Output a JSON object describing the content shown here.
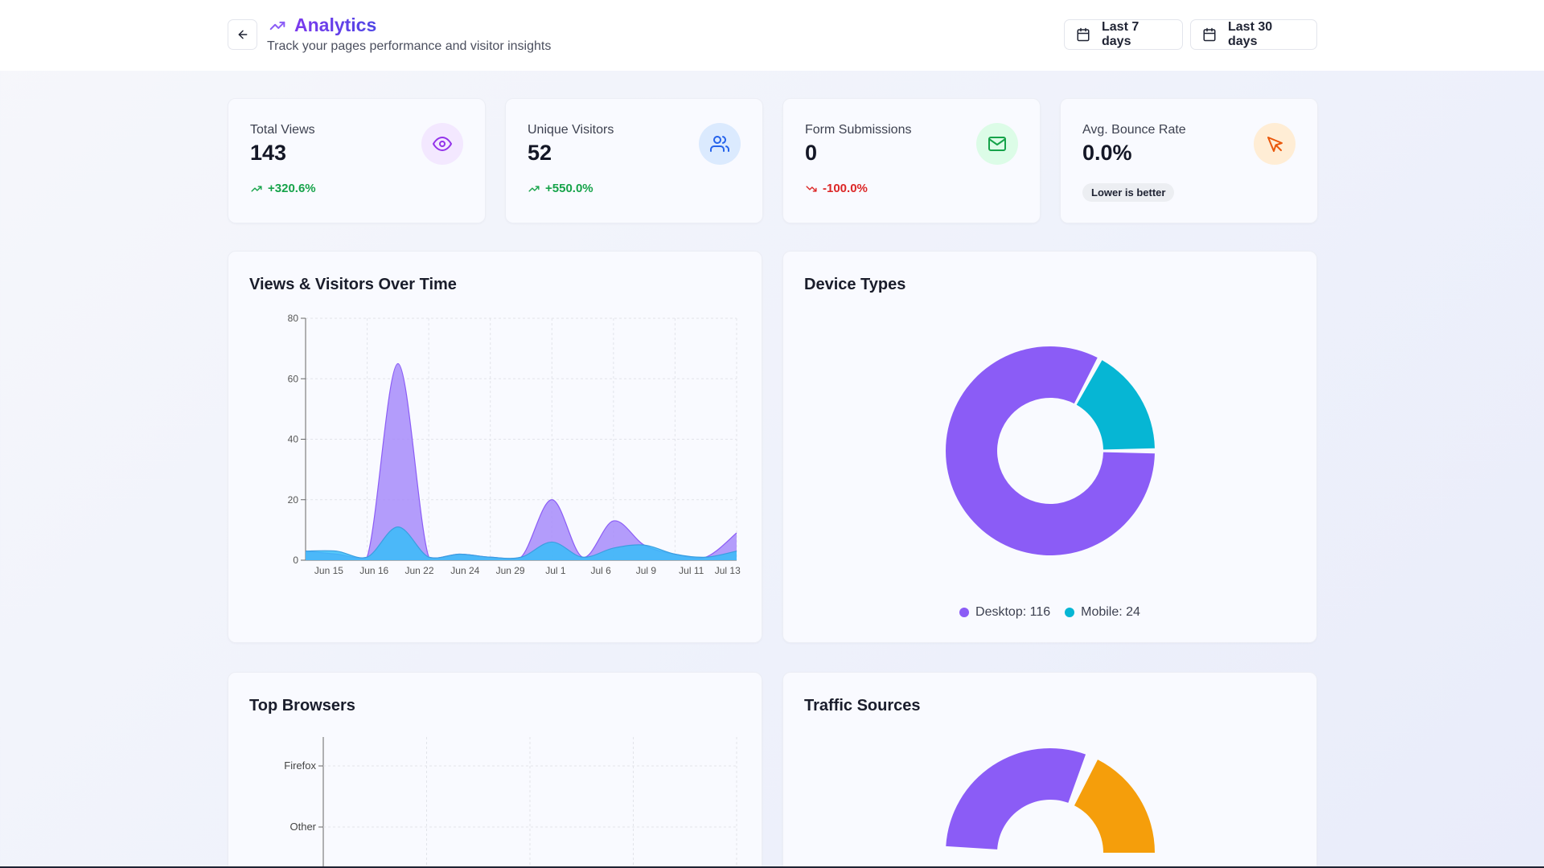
{
  "header": {
    "title": "Analytics",
    "subtitle": "Track your pages performance and visitor insights",
    "range_buttons": [
      "Last 7 days",
      "Last 30 days"
    ]
  },
  "stats": [
    {
      "label": "Total Views",
      "value": "143",
      "change": "+320.6%",
      "trend": "up",
      "icon": "eye-icon",
      "icon_color": "#9333ea",
      "icon_bg": "#f3e8ff"
    },
    {
      "label": "Unique Visitors",
      "value": "52",
      "change": "+550.0%",
      "trend": "up",
      "icon": "users-icon",
      "icon_color": "#2563eb",
      "icon_bg": "#dbeafe"
    },
    {
      "label": "Form Submissions",
      "value": "0",
      "change": "-100.0%",
      "trend": "down",
      "icon": "mail-icon",
      "icon_color": "#16a34a",
      "icon_bg": "#dcfce7"
    },
    {
      "label": "Avg. Bounce Rate",
      "value": "0.0%",
      "note": "Lower is better",
      "icon": "cursor-icon",
      "icon_color": "#ea580c",
      "icon_bg": "#ffedd5"
    }
  ],
  "panels": {
    "views_over_time": "Views & Visitors Over Time",
    "device_types": "Device Types",
    "top_browsers": "Top Browsers",
    "traffic_sources": "Traffic Sources"
  },
  "colors": {
    "views": "#a78bfa",
    "visitors": "#38bdf8",
    "desktop": "#8b5cf6",
    "mobile": "#06b6d4",
    "orange": "#f59e0b"
  },
  "chart_data": [
    {
      "type": "area",
      "title": "Views & Visitors Over Time",
      "ylim": [
        0,
        80
      ],
      "yticks": [
        0,
        20,
        40,
        60,
        80
      ],
      "xticks": [
        "Jun 15",
        "Jun 16",
        "Jun 22",
        "Jun 24",
        "Jun 29",
        "Jul 1",
        "Jul 6",
        "Jul 9",
        "Jul 11",
        "Jul 13"
      ],
      "grid": true,
      "series": [
        {
          "values": [
            3,
            2,
            1,
            65,
            1,
            2,
            1,
            1,
            20,
            1,
            13,
            5,
            2,
            1,
            9
          ]
        },
        {
          "values": [
            3,
            3,
            1,
            11,
            1,
            2,
            1,
            1,
            6,
            1,
            4,
            5,
            2,
            1,
            3
          ]
        }
      ]
    },
    {
      "type": "pie",
      "title": "Device Types",
      "categories": [
        "Desktop",
        "Mobile"
      ],
      "values": [
        116,
        24
      ],
      "legend": [
        "Desktop: 116",
        "Mobile: 24"
      ],
      "legend_position": "bottom"
    },
    {
      "type": "bar",
      "title": "Top Browsers",
      "categories": [
        "Firefox",
        "Other"
      ],
      "grid": true
    },
    {
      "type": "pie",
      "title": "Traffic Sources"
    }
  ]
}
